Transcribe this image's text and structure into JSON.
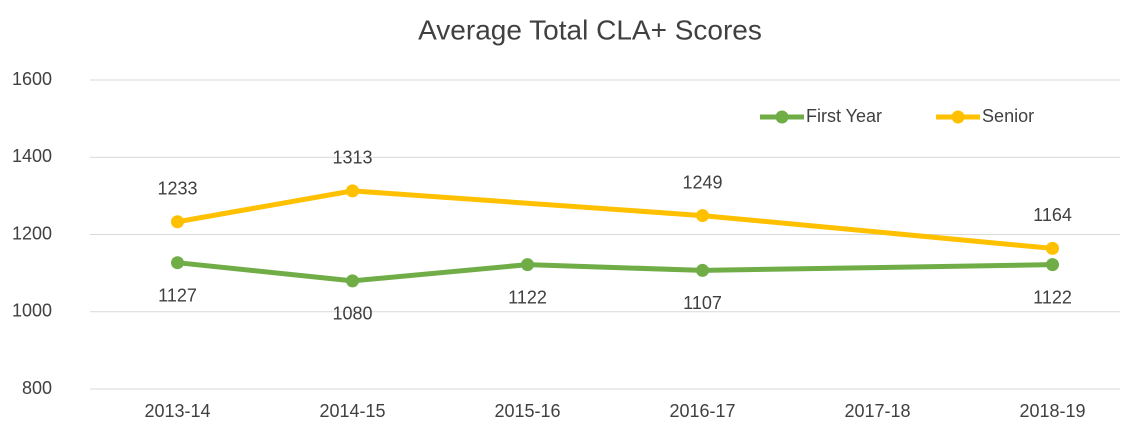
{
  "chart_data": {
    "type": "line",
    "title": "Average Total CLA+ Scores",
    "categories": [
      "2013-14",
      "2014-15",
      "2015-16",
      "2016-17",
      "2017-18",
      "2018-19"
    ],
    "series": [
      {
        "name": "First Year",
        "color": "#70ad47",
        "values": [
          1127,
          1080,
          1122,
          1107,
          null,
          1122
        ]
      },
      {
        "name": "Senior",
        "color": "#ffc000",
        "values": [
          1233,
          1313,
          null,
          1249,
          null,
          1164
        ]
      }
    ],
    "ylim": [
      800,
      1600
    ],
    "yticks": [
      800,
      1000,
      1200,
      1400,
      1600
    ],
    "grid": true,
    "legend": "top-right",
    "connect_gaps": true
  }
}
